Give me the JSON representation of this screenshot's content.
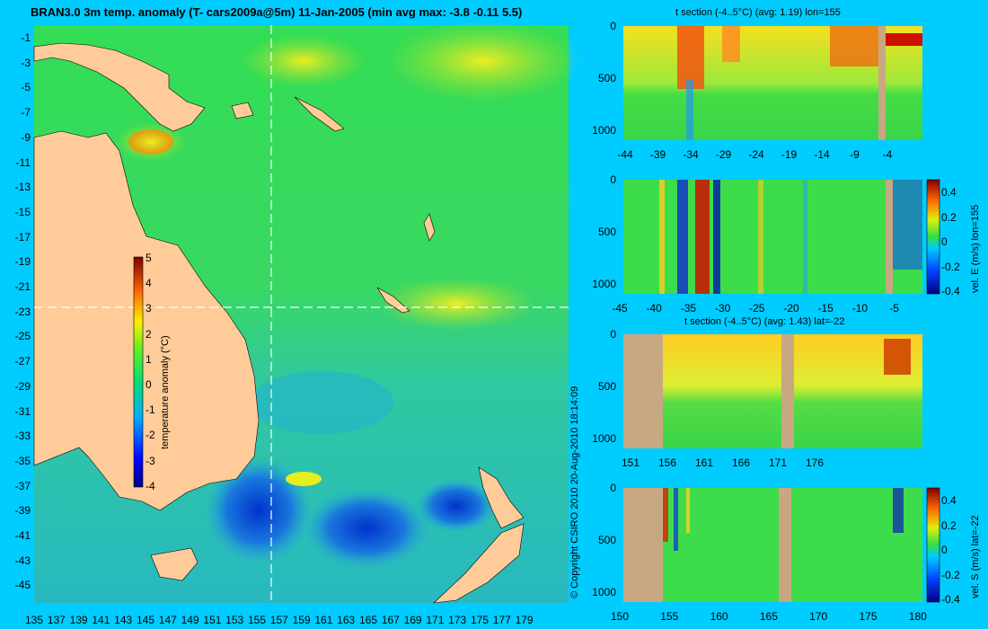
{
  "colors": {
    "page_background": "#00ccff",
    "land": "#ffcc99",
    "ocean_base": "#3ddc4a",
    "section_mask": "#c8a882",
    "guide_line": "#ffffff"
  },
  "map": {
    "title": "BRAN3.0 3m temp. anomaly (T- cars2009a@5m) 11-Jan-2005 (min avg max: -3.8 -0.11 5.5)",
    "lat_ticks": [
      "-1",
      "-3",
      "-5",
      "-7",
      "-9",
      "-11",
      "-13",
      "-15",
      "-17",
      "-19",
      "-21",
      "-23",
      "-25",
      "-27",
      "-29",
      "-31",
      "-33",
      "-35",
      "-37",
      "-39",
      "-41",
      "-43",
      "-45"
    ],
    "lon_ticks": [
      "135",
      "137",
      "139",
      "141",
      "143",
      "145",
      "147",
      "149",
      "151",
      "153",
      "155",
      "157",
      "159",
      "161",
      "163",
      "165",
      "167",
      "169",
      "171",
      "173",
      "175",
      "177",
      "179"
    ],
    "colorbar": {
      "label": "temperature anomaly (°C)",
      "ticks": [
        "5",
        "4",
        "3",
        "2",
        "1",
        "0",
        "-1",
        "-2",
        "-3",
        "-4"
      ],
      "range": [
        -4,
        5
      ]
    },
    "guide_lines": {
      "lon": 155,
      "lat": -22
    },
    "copyright": "© Copyright CSIRO 2010   20-Aug-2010 18:14:09"
  },
  "sections": [
    {
      "id": "t-lon",
      "title": "t section (-4..5°C) (avg: 1.19) lon=155",
      "x_ticks": [
        "-44",
        "-39",
        "-34",
        "-29",
        "-24",
        "-19",
        "-14",
        "-9",
        "-4"
      ],
      "y_ticks": [
        "0",
        "500",
        "1000"
      ]
    },
    {
      "id": "u-lon",
      "title": "",
      "x_ticks": [
        "-45",
        "-40",
        "-35",
        "-30",
        "-25",
        "-20",
        "-15",
        "-10",
        "-5"
      ],
      "y_ticks": [
        "0",
        "500",
        "1000"
      ],
      "colorbar": {
        "label": "vel. E (m/s) lon=155",
        "ticks": [
          "0.4",
          "0.2",
          "0",
          "-0.2",
          "-0.4"
        ],
        "range": [
          -0.4,
          0.4
        ]
      }
    },
    {
      "id": "t-lat",
      "title": "t section (-4..5°C) (avg: 1.43) lat=-22",
      "x_ticks": [
        "151",
        "156",
        "161",
        "166",
        "171",
        "176"
      ],
      "y_ticks": [
        "0",
        "500",
        "1000"
      ]
    },
    {
      "id": "v-lat",
      "title": "",
      "x_ticks": [
        "150",
        "155",
        "160",
        "165",
        "170",
        "175",
        "180"
      ],
      "y_ticks": [
        "0",
        "500",
        "1000"
      ],
      "colorbar": {
        "label": "vel. S (m/s) lat=-22",
        "ticks": [
          "0.4",
          "0.2",
          "0",
          "-0.2",
          "-0.4"
        ],
        "range": [
          -0.4,
          0.4
        ]
      }
    }
  ]
}
